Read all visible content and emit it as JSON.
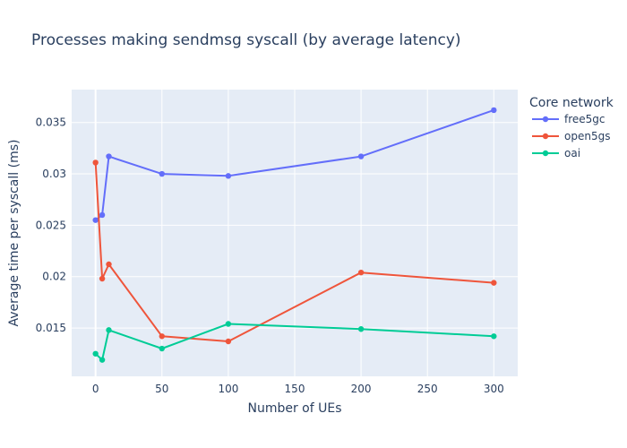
{
  "chart_data": {
    "type": "line",
    "title": "Processes making sendmsg syscall (by average latency)",
    "xlabel": "Number of UEs",
    "ylabel": "Average time per syscall (ms)",
    "xlim": [
      -18,
      318
    ],
    "ylim": [
      0.0103,
      0.0382
    ],
    "xticks": [
      0,
      50,
      100,
      150,
      200,
      250,
      300
    ],
    "yticks": [
      0.015,
      0.02,
      0.025,
      0.03,
      0.035
    ],
    "ytick_labels": [
      "0.015",
      "0.02",
      "0.025",
      "0.03",
      "0.035"
    ],
    "grid": true,
    "legend_title": "Core network",
    "legend_position": "top-right",
    "x": [
      0,
      5,
      10,
      50,
      100,
      200,
      300
    ],
    "series": [
      {
        "name": "free5gc",
        "color": "#636efa",
        "values": [
          0.0255,
          0.026,
          0.0317,
          0.03,
          0.0298,
          0.0317,
          0.0362
        ]
      },
      {
        "name": "open5gs",
        "color": "#ef553b",
        "values": [
          0.0311,
          0.0198,
          0.0212,
          0.0142,
          0.0137,
          0.0204,
          0.0194
        ]
      },
      {
        "name": "oai",
        "color": "#00cc96",
        "values": [
          0.0125,
          0.0119,
          0.0148,
          0.013,
          0.0154,
          0.0149,
          0.0142
        ]
      }
    ]
  }
}
